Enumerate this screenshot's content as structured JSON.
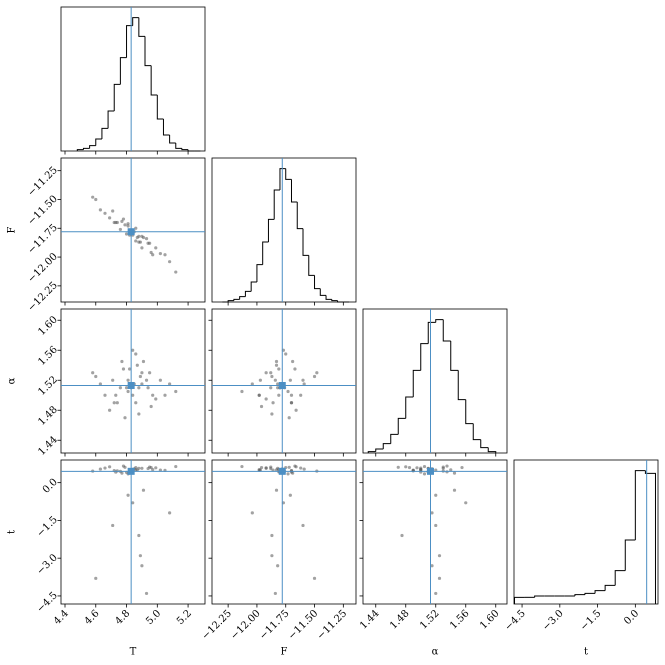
{
  "chart_data": {
    "type": "corner",
    "truth_color": "#4c8fc4",
    "point_color": "#555555",
    "hist_color": "#000000",
    "parameters": [
      {
        "label": "T",
        "lim": [
          4.374,
          5.31
        ],
        "ticks": [
          4.4,
          4.6,
          4.8,
          {
            "value": 5,
            "label": "5.0"
          },
          5.2
        ],
        "truth": 4.83,
        "bins": [
          4.48,
          4.52,
          4.56,
          4.6,
          4.64,
          4.68,
          4.72,
          4.76,
          4.8,
          4.84,
          4.88,
          4.92,
          4.96,
          5.0,
          5.04,
          5.08,
          5.12,
          5.16,
          5.2,
          5.24,
          5.28
        ],
        "counts": [
          1,
          2,
          4,
          9,
          17,
          30,
          50,
          70,
          94,
          100,
          86,
          64,
          42,
          24,
          12,
          6,
          2,
          1,
          0,
          0
        ],
        "samples": [
          4.85,
          4.72,
          4.95,
          4.8,
          4.91,
          4.66,
          5.02,
          4.88,
          4.78,
          4.83,
          4.97,
          4.6,
          4.86,
          4.74,
          5.08,
          4.9,
          4.81,
          4.69,
          4.93,
          4.87,
          4.76,
          4.99,
          4.84,
          4.63,
          5.05,
          4.89,
          4.79,
          4.82,
          4.94,
          4.71,
          4.86,
          5.12,
          4.77,
          4.9,
          4.84,
          4.58,
          4.96,
          4.81,
          4.88,
          4.73
        ]
      },
      {
        "label": "F",
        "lim": [
          -12.39,
          -11.14
        ],
        "ticks": [
          {
            "value": -12.25,
            "label": "−12.25"
          },
          {
            "value": -12,
            "label": "−12.00"
          },
          {
            "value": -11.75,
            "label": "−11.75"
          },
          {
            "value": -11.5,
            "label": "−11.50"
          },
          {
            "value": -11.25,
            "label": "−11.25"
          }
        ],
        "truth": -11.78,
        "bins": [
          -12.3,
          -12.25,
          -12.2,
          -12.15,
          -12.1,
          -12.05,
          -12.0,
          -11.95,
          -11.9,
          -11.85,
          -11.8,
          -11.75,
          -11.7,
          -11.65,
          -11.6,
          -11.55,
          -11.5,
          -11.45,
          -11.4,
          -11.35,
          -11.3,
          -11.25,
          -11.2
        ],
        "counts": [
          0,
          1,
          2,
          4,
          8,
          15,
          28,
          45,
          62,
          84,
          100,
          92,
          75,
          55,
          35,
          20,
          10,
          5,
          2,
          1,
          0,
          0
        ],
        "samples": [
          -11.78,
          -11.7,
          -11.88,
          -11.8,
          -11.83,
          -11.62,
          -11.97,
          -11.87,
          -11.67,
          -11.8,
          -11.98,
          -11.5,
          -11.75,
          -11.7,
          -12.04,
          -11.92,
          -11.73,
          -11.66,
          -11.84,
          -11.83,
          -11.76,
          -11.92,
          -11.77,
          -11.59,
          -11.98,
          -11.87,
          -11.72,
          -11.81,
          -11.88,
          -11.6,
          -11.86,
          -12.13,
          -11.69,
          -11.82,
          -11.81,
          -11.48,
          -11.96,
          -11.71,
          -11.82,
          -11.7
        ]
      },
      {
        "label": "α",
        "lim": [
          1.423,
          1.615
        ],
        "ticks": [
          1.44,
          1.48,
          1.52,
          1.56,
          {
            "value": 1.6,
            "label": "1.60"
          }
        ],
        "truth": 1.513,
        "bins": [
          1.43,
          1.44,
          1.45,
          1.46,
          1.47,
          1.48,
          1.49,
          1.5,
          1.51,
          1.52,
          1.53,
          1.54,
          1.55,
          1.56,
          1.57,
          1.58,
          1.59,
          1.6
        ],
        "counts": [
          1,
          3,
          7,
          14,
          26,
          42,
          62,
          82,
          98,
          100,
          84,
          62,
          40,
          22,
          10,
          4,
          1
        ],
        "samples": [
          1.515,
          1.49,
          1.53,
          1.51,
          1.545,
          1.5,
          1.52,
          1.475,
          1.535,
          1.51,
          1.5,
          1.525,
          1.555,
          1.49,
          1.515,
          1.53,
          1.505,
          1.48,
          1.52,
          1.54,
          1.51,
          1.495,
          1.56,
          1.515,
          1.5,
          1.525,
          1.47,
          1.535,
          1.51,
          1.52,
          1.49,
          1.505,
          1.545,
          1.515,
          1.5,
          1.53,
          1.485,
          1.52,
          1.51,
          1.5
        ]
      },
      {
        "label": "t",
        "lim": [
          -4.82,
          0.9
        ],
        "ticks": [
          {
            "value": -4.5,
            "label": "−4.5"
          },
          {
            "value": -3,
            "label": "−3.0"
          },
          {
            "value": -1.5,
            "label": "−1.5"
          },
          {
            "value": 0,
            "label": "0.0"
          }
        ],
        "truth": 0.45,
        "bins": [
          -4.8,
          -4.4,
          -4.0,
          -3.6,
          -3.2,
          -2.8,
          -2.4,
          -2.0,
          -1.6,
          -1.2,
          -0.8,
          -0.4,
          0.0,
          0.4,
          0.8
        ],
        "counts": [
          5,
          5,
          6,
          6,
          6,
          6,
          7,
          8,
          10,
          14,
          25,
          48,
          100,
          98
        ],
        "samples": [
          0.55,
          0.48,
          0.62,
          0.41,
          -0.3,
          0.58,
          0.5,
          -2.1,
          0.66,
          0.44,
          0.52,
          -3.8,
          0.6,
          0.47,
          -1.2,
          0.57,
          0.35,
          0.63,
          -4.4,
          0.51,
          0.45,
          0.59,
          -0.8,
          0.54,
          0.49,
          -2.9,
          0.61,
          0.43,
          0.56,
          -1.7,
          0.5,
          0.64,
          0.38,
          -3.3,
          0.53,
          0.46,
          0.6,
          -0.5,
          0.57,
          0.42
        ]
      }
    ]
  }
}
